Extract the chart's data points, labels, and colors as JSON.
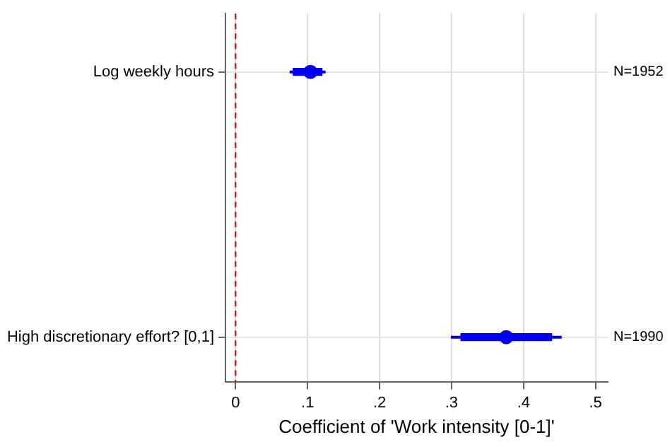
{
  "chart_data": {
    "type": "scatter",
    "orientation": "horizontal",
    "xlabel": "Coefficient of 'Work intensity [0-1]'",
    "categories": [
      "Log weekly hours",
      "High discretionary effort? [0,1]"
    ],
    "xlim": [
      -0.014,
      0.517
    ],
    "xticks": [
      {
        "value": 0,
        "label": "0"
      },
      {
        "value": 0.1,
        "label": ".1"
      },
      {
        "value": 0.2,
        "label": ".2"
      },
      {
        "value": 0.3,
        "label": ".3"
      },
      {
        "value": 0.4,
        "label": ".4"
      },
      {
        "value": 0.5,
        "label": ".5"
      }
    ],
    "series": [
      {
        "color": "#0000ee",
        "values": [
          0.104,
          0.376
        ],
        "errors": [
          [
            0.075,
            0.125
          ],
          [
            0.299,
            0.453
          ]
        ]
      },
      {
        "type": "bar",
        "color": "#0000ee",
        "base": [
          0.08,
          0.313
        ],
        "values": [
          0.04,
          0.126
        ]
      }
    ],
    "ref_lines": [
      {
        "axis": "x",
        "value": 0,
        "color": "#cc0000",
        "line_style": "dashed"
      }
    ],
    "annotations": [
      "N=1952",
      "N=1990"
    ],
    "grid": true,
    "legend": false
  }
}
